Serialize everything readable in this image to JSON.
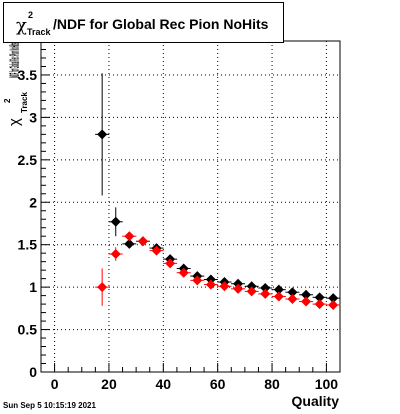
{
  "title": {
    "symbol": "χ",
    "superscript": "2",
    "subscript": "Track",
    "text": "/NDF for Global Rec Pion NoHits"
  },
  "footer": "Sun Sep  5 10:15:19 2021",
  "colors": {
    "series_black": "#000000",
    "series_red": "#ff0000",
    "grid": "#000000"
  },
  "chart_data": {
    "type": "scatter",
    "title": "χ²Track/NDF for Global Rec Pion NoHits",
    "xlabel": "Quality",
    "ylabel": "χ²Track/NDF",
    "xlim": [
      -5,
      105
    ],
    "ylim": [
      0,
      3.9
    ],
    "x_ticks": [
      0,
      20,
      40,
      60,
      80,
      100
    ],
    "y_ticks": [
      0,
      0.5,
      1,
      1.5,
      2,
      2.5,
      3,
      3.5
    ],
    "x_tick_labels": [
      "0",
      "20",
      "40",
      "60",
      "80",
      "100"
    ],
    "y_tick_labels": [
      "0",
      "0.5",
      "1",
      "1.5",
      "2",
      "2.5",
      "3",
      "3.5"
    ],
    "grid": true,
    "series": [
      {
        "color": "#000000",
        "points": [
          {
            "x": 17.5,
            "y": 2.8,
            "err": 0.72
          },
          {
            "x": 22.5,
            "y": 1.77,
            "err": 0.17
          },
          {
            "x": 27.5,
            "y": 1.51,
            "err": 0.05
          },
          {
            "x": 32.5,
            "y": 1.54,
            "err": 0.03
          },
          {
            "x": 37.5,
            "y": 1.46,
            "err": 0.03
          },
          {
            "x": 42.5,
            "y": 1.33,
            "err": 0.02
          },
          {
            "x": 47.5,
            "y": 1.22,
            "err": 0.02
          },
          {
            "x": 52.5,
            "y": 1.13,
            "err": 0.02
          },
          {
            "x": 57.5,
            "y": 1.09,
            "err": 0.02
          },
          {
            "x": 62.5,
            "y": 1.06,
            "err": 0.02
          },
          {
            "x": 67.5,
            "y": 1.04,
            "err": 0.02
          },
          {
            "x": 72.5,
            "y": 1.01,
            "err": 0.02
          },
          {
            "x": 77.5,
            "y": 0.99,
            "err": 0.02
          },
          {
            "x": 82.5,
            "y": 0.97,
            "err": 0.02
          },
          {
            "x": 87.5,
            "y": 0.94,
            "err": 0.02
          },
          {
            "x": 92.5,
            "y": 0.91,
            "err": 0.02
          },
          {
            "x": 97.5,
            "y": 0.88,
            "err": 0.02
          },
          {
            "x": 102.5,
            "y": 0.87,
            "err": 0.02
          }
        ]
      },
      {
        "color": "#ff0000",
        "points": [
          {
            "x": 17.5,
            "y": 1.0,
            "err": 0.22
          },
          {
            "x": 22.5,
            "y": 1.39,
            "err": 0.08
          },
          {
            "x": 27.5,
            "y": 1.6,
            "err": 0.05
          },
          {
            "x": 32.5,
            "y": 1.54,
            "err": 0.03
          },
          {
            "x": 37.5,
            "y": 1.43,
            "err": 0.03
          },
          {
            "x": 42.5,
            "y": 1.28,
            "err": 0.02
          },
          {
            "x": 47.5,
            "y": 1.17,
            "err": 0.02
          },
          {
            "x": 52.5,
            "y": 1.08,
            "err": 0.02
          },
          {
            "x": 57.5,
            "y": 1.03,
            "err": 0.02
          },
          {
            "x": 62.5,
            "y": 1.01,
            "err": 0.02
          },
          {
            "x": 67.5,
            "y": 0.98,
            "err": 0.02
          },
          {
            "x": 72.5,
            "y": 0.95,
            "err": 0.02
          },
          {
            "x": 77.5,
            "y": 0.92,
            "err": 0.02
          },
          {
            "x": 82.5,
            "y": 0.89,
            "err": 0.02
          },
          {
            "x": 87.5,
            "y": 0.86,
            "err": 0.02
          },
          {
            "x": 92.5,
            "y": 0.83,
            "err": 0.02
          },
          {
            "x": 97.5,
            "y": 0.8,
            "err": 0.02
          },
          {
            "x": 102.5,
            "y": 0.79,
            "err": 0.02
          }
        ]
      }
    ]
  }
}
